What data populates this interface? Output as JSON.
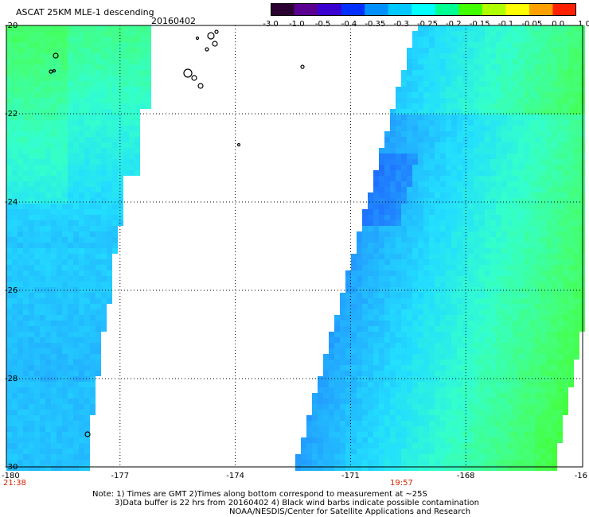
{
  "header": {
    "title": "ASCAT 25KM MLE-1 descending",
    "date": "20160402"
  },
  "colorbar": {
    "labels": [
      "-3.0",
      "-1.0",
      "-0.5",
      "-0.4",
      "-0.35",
      "-0.3",
      "-0.25",
      "-0.2",
      "-0.15",
      "-0.1",
      "-0.05",
      "0.0",
      "1.0"
    ],
    "colors": [
      "#2a0030",
      "#5a0090",
      "#3a00d0",
      "#0030ff",
      "#0090ff",
      "#00c8ff",
      "#00ffff",
      "#00ff90",
      "#40ff00",
      "#b0ff00",
      "#ffff00",
      "#ffa000",
      "#ff2000"
    ]
  },
  "map": {
    "lat_labels": [
      "-20",
      "-22",
      "-24",
      "-26",
      "-28",
      "-30"
    ],
    "lon_labels": [
      "-180",
      "-177",
      "-174",
      "-171",
      "-168",
      "-16"
    ],
    "swath_times": [
      {
        "text": "21:38",
        "color": "#cc2200"
      },
      {
        "text": "19:57",
        "color": "#cc2200"
      }
    ],
    "land_color": "#000000",
    "water_color": "#ffffff"
  },
  "notes": {
    "line1": "Note: 1) Times are GMT 2)Times along bottom correspond to measurement at ~25S",
    "line2": "3)Data buffer is 22 hrs from 20160402 4) Black wind barbs indicate possible contamination",
    "line3": "NOAA/NESDIS/Center for Satellite Applications and Research"
  }
}
